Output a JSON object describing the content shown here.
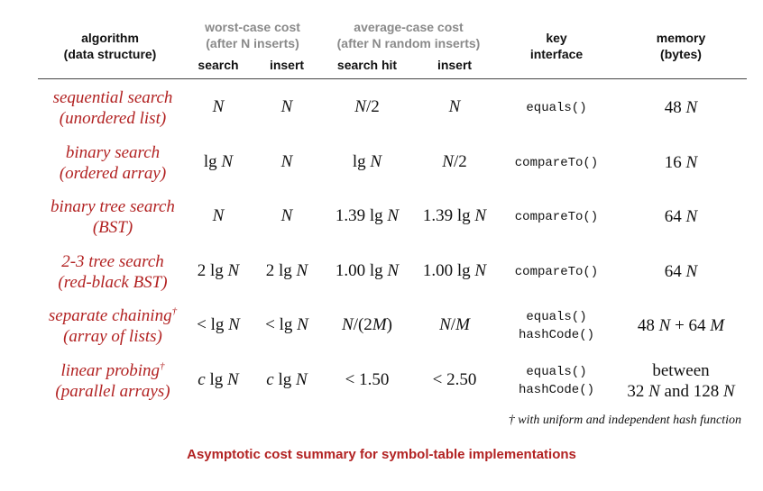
{
  "headers": {
    "algorithm": "algorithm",
    "algorithm_sub": "(data structure)",
    "worst_case": "worst-case cost",
    "worst_case_sub": "(after N inserts)",
    "average_case": "average-case cost",
    "average_case_sub": "(after N random inserts)",
    "search": "search",
    "insert": "insert",
    "search_hit": "search hit",
    "insert_avg": "insert",
    "key": "key",
    "key_sub": "interface",
    "memory": "memory",
    "memory_sub": "(bytes)"
  },
  "rows": [
    {
      "alg": "sequential search",
      "ds": "(unordered list)",
      "dagger": "",
      "ws": [
        "",
        "N"
      ],
      "wi": [
        "",
        "N"
      ],
      "ah": [
        "",
        "N/2"
      ],
      "ai": [
        "",
        "N"
      ],
      "key1": "equals()",
      "key2": "",
      "mem1": "48 N",
      "mem2": ""
    },
    {
      "alg": "binary search",
      "ds": "(ordered array)",
      "dagger": "",
      "ws": [
        "lg ",
        "N"
      ],
      "wi": [
        "",
        "N"
      ],
      "ah": [
        "lg ",
        "N"
      ],
      "ai": [
        "",
        "N/2"
      ],
      "key1": "compareTo()",
      "key2": "",
      "mem1": "16 N",
      "mem2": ""
    },
    {
      "alg": "binary tree search",
      "ds": "(BST)",
      "dagger": "",
      "ws": [
        "",
        "N"
      ],
      "wi": [
        "",
        "N"
      ],
      "ah": [
        "1.39 lg ",
        "N"
      ],
      "ai": [
        "1.39 lg ",
        "N"
      ],
      "key1": "compareTo()",
      "key2": "",
      "mem1": "64 N",
      "mem2": ""
    },
    {
      "alg": "2-3 tree search",
      "ds": "(red-black BST)",
      "dagger": "",
      "ws": [
        "2 lg ",
        "N"
      ],
      "wi": [
        "2 lg ",
        "N"
      ],
      "ah": [
        "1.00 lg ",
        "N"
      ],
      "ai": [
        "1.00 lg ",
        "N"
      ],
      "key1": "compareTo()",
      "key2": "",
      "mem1": "64 N",
      "mem2": ""
    },
    {
      "alg": "separate chaining",
      "ds": "(array of lists)",
      "dagger": "†",
      "ws": [
        "< lg ",
        "N"
      ],
      "wi": [
        "< lg ",
        "N"
      ],
      "ah": [
        "",
        "N/(2M)"
      ],
      "ai": [
        "",
        "N/M"
      ],
      "key1": "equals()",
      "key2": "hashCode()",
      "mem1": "48 N + 64 M",
      "mem2": ""
    },
    {
      "alg": "linear probing",
      "ds": "(parallel arrays)",
      "dagger": "†",
      "ws": [
        "c lg ",
        "N"
      ],
      "wi": [
        "c lg ",
        "N"
      ],
      "ah": [
        "< 1.50",
        ""
      ],
      "ai": [
        "< 2.50",
        ""
      ],
      "key1": "equals()",
      "key2": "hashCode()",
      "mem1": "between",
      "mem2": "32 N and 128 N"
    }
  ],
  "footnote": "† with uniform and independent hash function",
  "caption": "Asymptotic cost summary for symbol-table implementations"
}
